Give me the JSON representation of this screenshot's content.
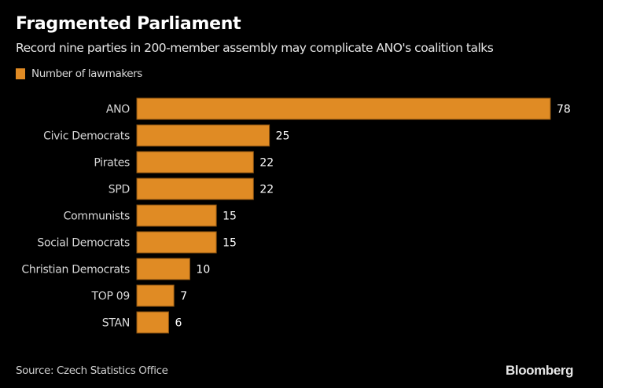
{
  "chart_data": {
    "type": "bar",
    "orientation": "horizontal",
    "title": "Fragmented Parliament",
    "subtitle": "Record nine parties in 200-member assembly may complicate ANO's coalition talks",
    "categories": [
      "ANO",
      "Civic Democrats",
      "Pirates",
      "SPD",
      "Communists",
      "Social Democrats",
      "Christian Democrats",
      "TOP 09",
      "STAN"
    ],
    "series": [
      {
        "name": "Number of lawmakers",
        "values": [
          78,
          25,
          22,
          22,
          15,
          15,
          10,
          7,
          6
        ],
        "color": "#E08B24"
      }
    ],
    "xlabel": "",
    "ylabel": "",
    "xlim": [
      0,
      78
    ],
    "grid": false,
    "legend_position": "top-left",
    "source": "Source: Czech Statistics Office",
    "brand": "Bloomberg"
  }
}
